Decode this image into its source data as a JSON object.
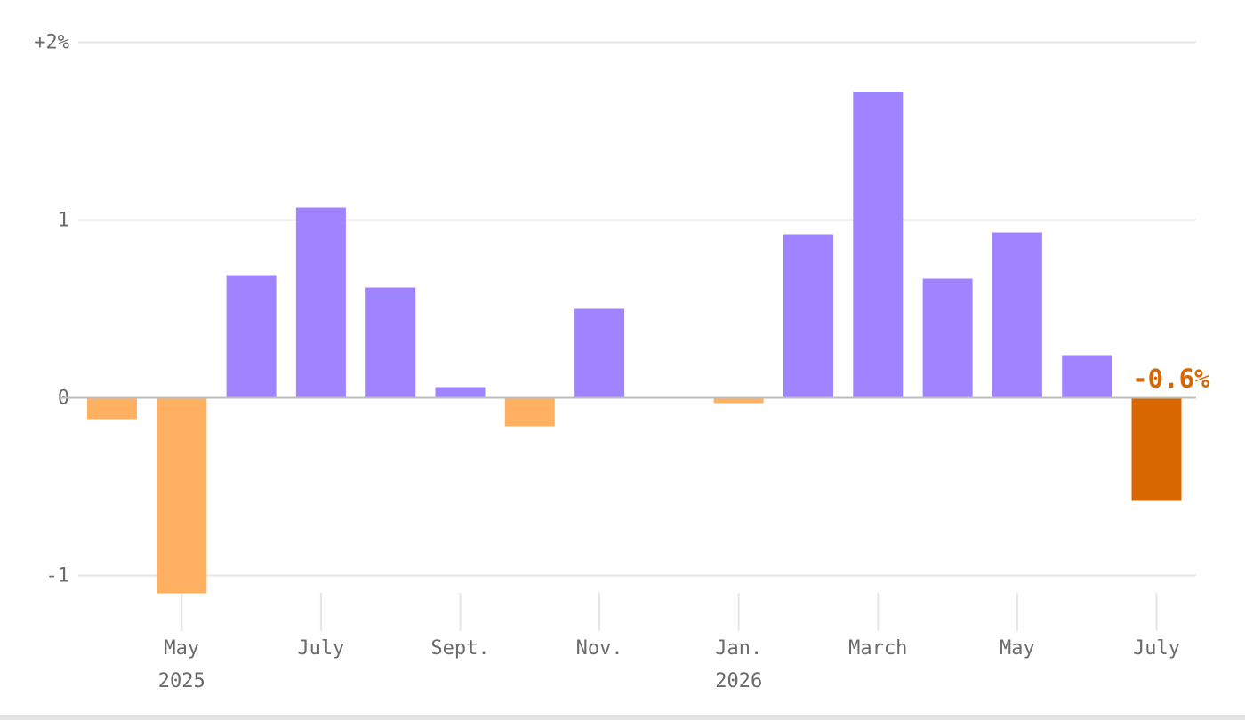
{
  "chart_data": {
    "type": "bar",
    "categories": [
      "2025-04",
      "2025-05",
      "2025-06",
      "2025-07",
      "2025-08",
      "2025-09",
      "2025-10",
      "2025-11",
      "2025-12",
      "2026-01",
      "2026-02",
      "2026-03",
      "2026-04",
      "2026-05",
      "2026-06",
      "2026-07"
    ],
    "values": [
      -0.12,
      -1.1,
      0.69,
      1.07,
      0.62,
      0.06,
      -0.16,
      0.5,
      0.0,
      -0.03,
      0.92,
      1.72,
      0.67,
      0.93,
      0.24,
      -0.58
    ],
    "ylim": [
      -1.1,
      2
    ],
    "y_ticks": [
      {
        "value": 2,
        "label": "+2%"
      },
      {
        "value": 1,
        "label": "1"
      },
      {
        "value": 0,
        "label": "0"
      },
      {
        "value": -1,
        "label": "-1"
      }
    ],
    "x_ticks": [
      {
        "category": "2025-05",
        "label": "May",
        "year": "2025"
      },
      {
        "category": "2025-07",
        "label": "July",
        "year": ""
      },
      {
        "category": "2025-09",
        "label": "Sept.",
        "year": ""
      },
      {
        "category": "2025-11",
        "label": "Nov.",
        "year": ""
      },
      {
        "category": "2026-01",
        "label": "Jan.",
        "year": "2026"
      },
      {
        "category": "2026-03",
        "label": "March",
        "year": ""
      },
      {
        "category": "2026-05",
        "label": "May",
        "year": ""
      },
      {
        "category": "2026-07",
        "label": "July",
        "year": ""
      }
    ],
    "annotation": {
      "category": "2026-07",
      "text": "-0.6%"
    },
    "grid": true,
    "colors": {
      "positive": "#a084ff",
      "negative": "#ffb061",
      "highlight": "#d96700",
      "grid": "#e6e6e6",
      "zero_line": "#bdbdbd",
      "tick_text": "#6b6b6b"
    }
  }
}
